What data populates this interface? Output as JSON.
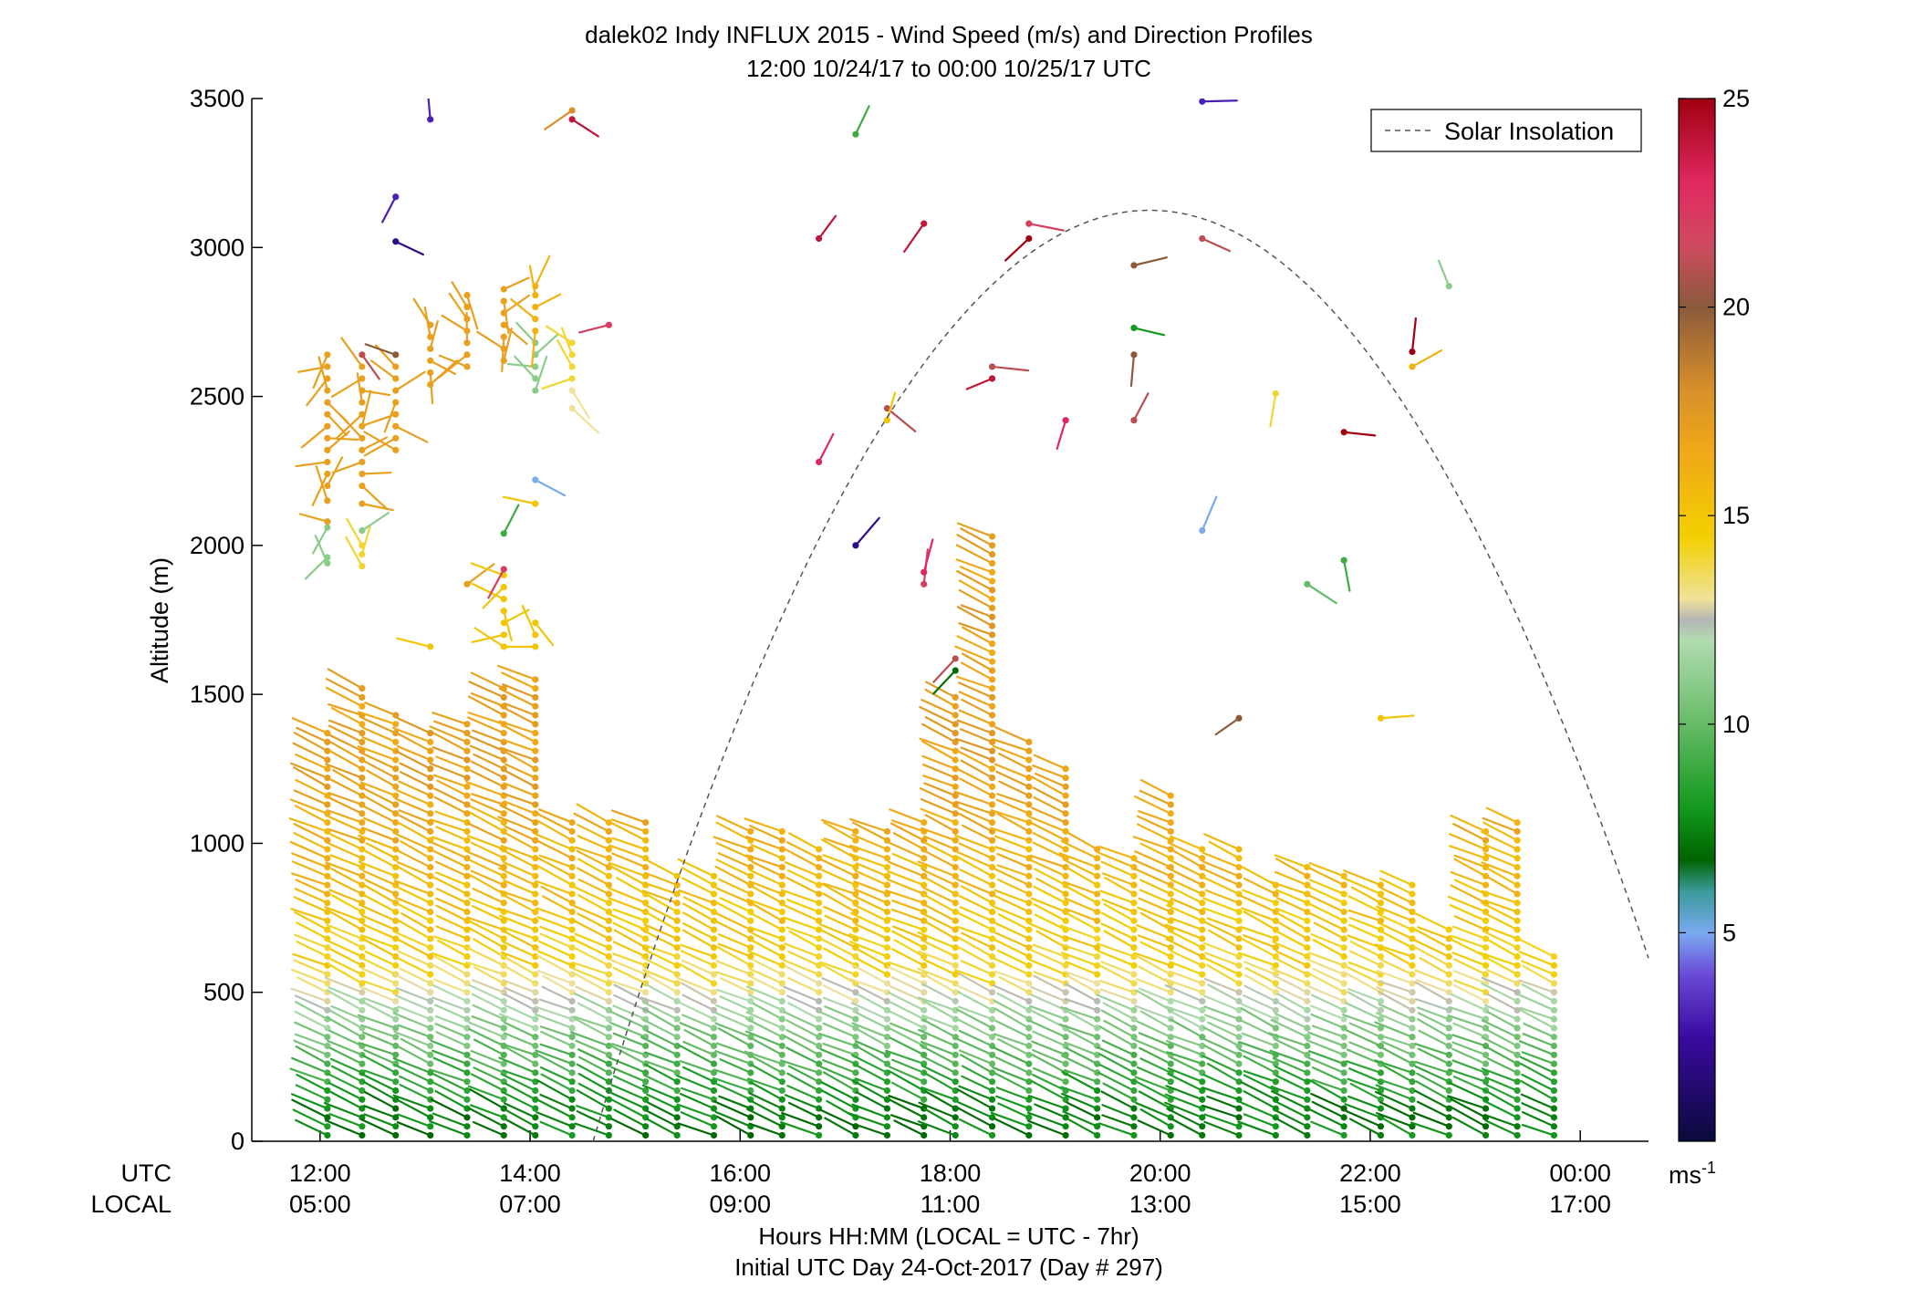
{
  "chart_data": {
    "type": "scatter",
    "subtype": "wind-barb profile",
    "title": "dalek02 Indy INFLUX 2015 - Wind Speed (m/s) and Direction Profiles",
    "subtitle": "12:00 10/24/17 to 00:00 10/25/17  UTC",
    "ylabel": "Altitude (m)",
    "xlabel_line1": "Hours HH:MM  (LOCAL = UTC - 7hr)",
    "xlabel_line2": "Initial UTC Day 24-Oct-2017 (Day # 297)",
    "row_label_utc": "UTC",
    "row_label_local": "LOCAL",
    "xlim": [
      11.35,
      24.65
    ],
    "ylim": [
      0,
      3500
    ],
    "y_ticks": [
      "0",
      "500",
      "1000",
      "1500",
      "2000",
      "2500",
      "3000",
      "3500"
    ],
    "x_ticks_utc": [
      "12:00",
      "14:00",
      "16:00",
      "18:00",
      "20:00",
      "22:00",
      "00:00"
    ],
    "x_ticks_local": [
      "05:00",
      "07:00",
      "09:00",
      "11:00",
      "13:00",
      "15:00",
      "17:00"
    ],
    "x_tick_hours": [
      12,
      14,
      16,
      18,
      20,
      22,
      24
    ],
    "legend": {
      "label": "Solar Insolation",
      "position": "top-right"
    },
    "colorbar": {
      "ticks": [
        "5",
        "10",
        "15",
        "20",
        "25"
      ],
      "tick_values": [
        5,
        10,
        15,
        20,
        25
      ],
      "range": [
        0,
        25
      ],
      "unit_base": "ms",
      "unit_exp": "-1"
    },
    "solar_insolation": {
      "peak_hour": 19.9,
      "peak_altitude": 3125,
      "start_hour": 14.6,
      "end_hour": 24.65,
      "end_altitude": 680
    },
    "profiles": [
      {
        "t": 12.07,
        "top": 1370,
        "upper": [
          [
            1940,
            11
          ],
          [
            1960,
            11
          ],
          [
            2060,
            11
          ],
          [
            2080,
            17
          ],
          [
            2150,
            17
          ],
          [
            2200,
            17
          ],
          [
            2240,
            17
          ],
          [
            2280,
            17
          ],
          [
            2320,
            17
          ],
          [
            2360,
            17
          ],
          [
            2400,
            17
          ],
          [
            2440,
            17
          ],
          [
            2480,
            17
          ],
          [
            2520,
            17
          ],
          [
            2560,
            17
          ],
          [
            2600,
            17
          ],
          [
            2640,
            17
          ]
        ]
      },
      {
        "t": 12.4,
        "top": 1530,
        "upper": [
          [
            1930,
            14
          ],
          [
            1970,
            14
          ],
          [
            2000,
            14
          ],
          [
            2050,
            11
          ],
          [
            2140,
            17
          ],
          [
            2200,
            17
          ],
          [
            2240,
            17
          ],
          [
            2280,
            17
          ],
          [
            2320,
            17
          ],
          [
            2360,
            17
          ],
          [
            2400,
            17
          ],
          [
            2440,
            17
          ],
          [
            2480,
            17
          ],
          [
            2520,
            17
          ],
          [
            2560,
            17
          ],
          [
            2600,
            17
          ],
          [
            2640,
            21
          ]
        ]
      },
      {
        "t": 12.72,
        "top": 1440,
        "upper": [
          [
            3020,
            2
          ],
          [
            3170,
            3
          ],
          [
            2320,
            17
          ],
          [
            2360,
            17
          ],
          [
            2400,
            17
          ],
          [
            2440,
            17
          ],
          [
            2480,
            17
          ],
          [
            2520,
            17
          ],
          [
            2560,
            17
          ],
          [
            2600,
            17
          ],
          [
            2640,
            20
          ]
        ]
      },
      {
        "t": 13.05,
        "top": 1390,
        "upper": [
          [
            1660,
            15
          ],
          [
            2540,
            17
          ],
          [
            2580,
            17
          ],
          [
            2620,
            17
          ],
          [
            2660,
            17
          ],
          [
            2700,
            17
          ],
          [
            2740,
            17
          ],
          [
            3430,
            3
          ]
        ]
      },
      {
        "t": 13.4,
        "top": 1420,
        "upper": [
          [
            1870,
            17
          ],
          [
            2600,
            17
          ],
          [
            2640,
            17
          ],
          [
            2680,
            17
          ],
          [
            2720,
            17
          ],
          [
            2760,
            17
          ],
          [
            2800,
            17
          ],
          [
            2840,
            17
          ]
        ]
      },
      {
        "t": 13.75,
        "top": 1530,
        "upper": [
          [
            1660,
            15
          ],
          [
            1700,
            15
          ],
          [
            1740,
            15
          ],
          [
            1780,
            15
          ],
          [
            1820,
            15
          ],
          [
            1860,
            15
          ],
          [
            1900,
            15
          ],
          [
            1920,
            22
          ],
          [
            2040,
            9
          ],
          [
            2620,
            17
          ],
          [
            2660,
            17
          ],
          [
            2700,
            17
          ],
          [
            2740,
            17
          ],
          [
            2780,
            17
          ],
          [
            2820,
            17
          ],
          [
            2860,
            17
          ]
        ]
      },
      {
        "t": 14.05,
        "top": 1570,
        "upper": [
          [
            1660,
            15
          ],
          [
            1700,
            15
          ],
          [
            1740,
            15
          ],
          [
            2140,
            15
          ],
          [
            2220,
            5
          ],
          [
            2520,
            11
          ],
          [
            2560,
            11
          ],
          [
            2600,
            11
          ],
          [
            2640,
            11
          ],
          [
            2680,
            11
          ],
          [
            2720,
            16
          ],
          [
            2760,
            16
          ],
          [
            2800,
            16
          ],
          [
            2840,
            16
          ],
          [
            2870,
            16
          ]
        ]
      },
      {
        "t": 14.4,
        "top": 1080,
        "upper": [
          [
            2460,
            13
          ],
          [
            2520,
            13
          ],
          [
            2560,
            14
          ],
          [
            2600,
            14
          ],
          [
            2640,
            14
          ],
          [
            2680,
            14
          ],
          [
            3430,
            24
          ],
          [
            3460,
            18
          ]
        ]
      },
      {
        "t": 14.75,
        "top": 1080,
        "upper": [
          [
            2740,
            22
          ]
        ]
      },
      {
        "t": 15.1,
        "top": 1080,
        "upper": []
      },
      {
        "t": 15.4,
        "top": 910,
        "upper": []
      },
      {
        "t": 15.75,
        "top": 900,
        "upper": []
      },
      {
        "t": 16.1,
        "top": 1050,
        "upper": []
      },
      {
        "t": 16.4,
        "top": 1050,
        "upper": []
      },
      {
        "t": 16.75,
        "top": 1000,
        "upper": [
          [
            2280,
            23
          ],
          [
            3030,
            24
          ]
        ]
      },
      {
        "t": 17.1,
        "top": 1040,
        "upper": [
          [
            2000,
            2
          ],
          [
            3380,
            9
          ]
        ]
      },
      {
        "t": 17.4,
        "top": 1050,
        "upper": [
          [
            2460,
            21
          ],
          [
            2420,
            15
          ]
        ]
      },
      {
        "t": 17.75,
        "top": 1090,
        "upper": [
          [
            1870,
            22
          ],
          [
            1910,
            23
          ],
          [
            3080,
            24
          ]
        ]
      },
      {
        "t": 18.05,
        "top": 1490,
        "upper": [
          [
            1580,
            7
          ],
          [
            1620,
            21
          ]
        ]
      },
      {
        "t": 18.4,
        "top": 2050,
        "upper": [
          [
            2560,
            24
          ],
          [
            2600,
            21
          ]
        ]
      },
      {
        "t": 18.75,
        "top": 1340,
        "upper": [
          [
            3080,
            22
          ],
          [
            3030,
            25
          ]
        ]
      },
      {
        "t": 19.1,
        "top": 1250,
        "upper": [
          [
            2420,
            23
          ]
        ]
      },
      {
        "t": 19.4,
        "top": 1000,
        "upper": []
      },
      {
        "t": 19.75,
        "top": 950,
        "upper": [
          [
            2420,
            21
          ],
          [
            2730,
            8
          ],
          [
            2940,
            20
          ],
          [
            2640,
            20
          ]
        ]
      },
      {
        "t": 20.1,
        "top": 1160,
        "upper": []
      },
      {
        "t": 20.4,
        "top": 1000,
        "upper": [
          [
            2050,
            5
          ],
          [
            3030,
            21
          ],
          [
            3490,
            3
          ]
        ]
      },
      {
        "t": 20.75,
        "top": 1000,
        "upper": [
          [
            1420,
            20
          ]
        ]
      },
      {
        "t": 21.1,
        "top": 870,
        "upper": [
          [
            2510,
            14
          ]
        ]
      },
      {
        "t": 21.4,
        "top": 920,
        "upper": [
          [
            1870,
            10
          ]
        ]
      },
      {
        "t": 21.75,
        "top": 900,
        "upper": [
          [
            1950,
            9
          ],
          [
            2380,
            25
          ]
        ]
      },
      {
        "t": 22.1,
        "top": 880,
        "upper": [
          [
            1420,
            15
          ]
        ]
      },
      {
        "t": 22.4,
        "top": 870,
        "upper": [
          [
            2650,
            25
          ],
          [
            2600,
            16
          ]
        ]
      },
      {
        "t": 22.75,
        "top": 710,
        "upper": [
          [
            2870,
            11
          ]
        ]
      },
      {
        "t": 23.1,
        "top": 1060,
        "upper": []
      },
      {
        "t": 23.4,
        "top": 1090,
        "upper": []
      },
      {
        "t": 23.75,
        "top": 620,
        "upper": []
      }
    ]
  }
}
